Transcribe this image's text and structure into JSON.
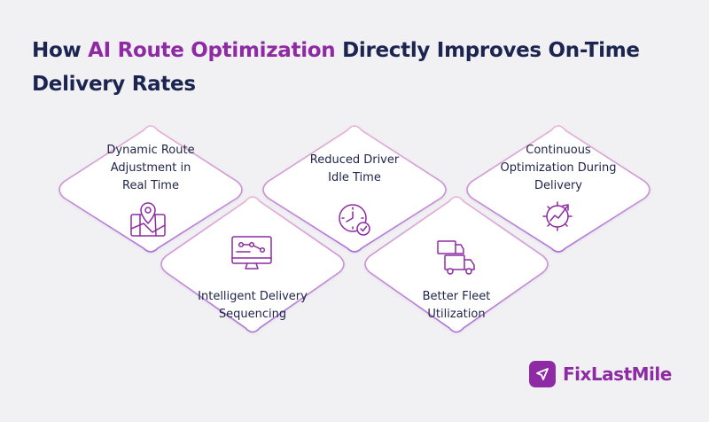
{
  "header": {
    "title_before": "How ",
    "title_accent": "AI Route Optimization",
    "title_after": " Directly Improves On-Time Delivery Rates"
  },
  "cards": [
    {
      "label_lines": [
        "Dynamic Route",
        "Adjustment in",
        "Real Time"
      ],
      "icon": "map-pin-icon"
    },
    {
      "label_lines": [
        "Intelligent Delivery",
        "Sequencing"
      ],
      "icon": "monitor-workflow-icon"
    },
    {
      "label_lines": [
        "Reduced Driver",
        "Idle Time"
      ],
      "icon": "clock-check-icon"
    },
    {
      "label_lines": [
        "Better Fleet",
        "Utilization"
      ],
      "icon": "trucks-icon"
    },
    {
      "label_lines": [
        "Continuous",
        "Optimization During",
        "Delivery"
      ],
      "icon": "gear-growth-icon"
    }
  ],
  "brand": {
    "name": "FixLastMile",
    "accent_color": "#8e2aa4",
    "border_gradient": [
      "#e6a9d2",
      "#a86fd8"
    ]
  }
}
